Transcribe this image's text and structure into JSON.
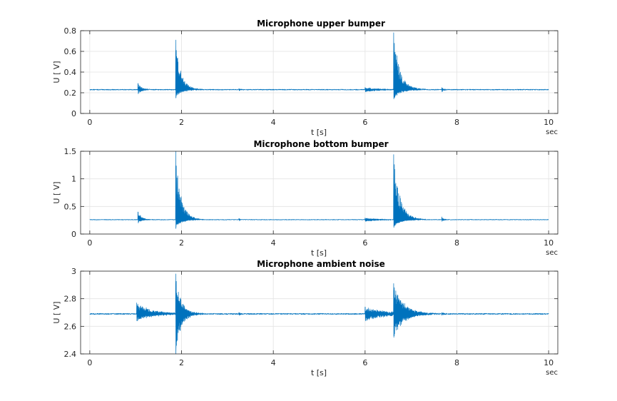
{
  "figure": {
    "background": "#ffffff"
  },
  "chart_data": [
    {
      "type": "line",
      "title": "Microphone upper bumper",
      "xlabel": "t [s]",
      "ylabel": "U [ V]",
      "x_unit_label": "sec",
      "xlim": [
        -0.2,
        10.2
      ],
      "ylim": [
        0,
        0.8
      ],
      "xticks": [
        0,
        2,
        4,
        6,
        8,
        10
      ],
      "yticks": [
        0,
        0.2,
        0.4,
        0.6,
        0.8
      ],
      "grid": true,
      "series_color": "#0072BD",
      "signal": {
        "baseline": 0.23,
        "noise": 0.004,
        "duration_s": 10,
        "events": [
          {
            "t": 1.05,
            "peak": 0.29,
            "trough": 0.19,
            "decay": 0.08
          },
          {
            "t": 1.87,
            "peak": 0.71,
            "trough": 0.15,
            "decay": 0.12
          },
          {
            "t": 3.25,
            "peak": 0.24,
            "trough": 0.22,
            "decay": 0.03
          },
          {
            "t": 6.0,
            "peak": 0.25,
            "trough": 0.21,
            "decay": 0.3
          },
          {
            "t": 6.62,
            "peak": 0.78,
            "trough": 0.14,
            "decay": 0.14
          },
          {
            "t": 7.67,
            "peak": 0.25,
            "trough": 0.21,
            "decay": 0.05
          }
        ]
      }
    },
    {
      "type": "line",
      "title": "Microphone bottom bumper",
      "xlabel": "t [s]",
      "ylabel": "U [ V]",
      "x_unit_label": "sec",
      "xlim": [
        -0.2,
        10.2
      ],
      "ylim": [
        0,
        1.5
      ],
      "xticks": [
        0,
        2,
        4,
        6,
        8,
        10
      ],
      "yticks": [
        0,
        0.5,
        1,
        1.5
      ],
      "grid": true,
      "series_color": "#0072BD",
      "signal": {
        "baseline": 0.26,
        "noise": 0.005,
        "duration_s": 10,
        "events": [
          {
            "t": 1.05,
            "peak": 0.4,
            "trough": 0.2,
            "decay": 0.08
          },
          {
            "t": 1.87,
            "peak": 1.5,
            "trough": 0.1,
            "decay": 0.12
          },
          {
            "t": 3.25,
            "peak": 0.28,
            "trough": 0.24,
            "decay": 0.03
          },
          {
            "t": 6.0,
            "peak": 0.29,
            "trough": 0.23,
            "decay": 0.3
          },
          {
            "t": 6.62,
            "peak": 1.44,
            "trough": 0.12,
            "decay": 0.14
          },
          {
            "t": 7.67,
            "peak": 0.31,
            "trough": 0.23,
            "decay": 0.05
          }
        ]
      }
    },
    {
      "type": "line",
      "title": "Microphone ambient noise",
      "xlabel": "t [s]",
      "ylabel": "U [ V]",
      "x_unit_label": "sec",
      "xlim": [
        -0.2,
        10.2
      ],
      "ylim": [
        2.4,
        3
      ],
      "xticks": [
        0,
        2,
        4,
        6,
        8,
        10
      ],
      "yticks": [
        2.4,
        2.6,
        2.8,
        3
      ],
      "grid": true,
      "series_color": "#0072BD",
      "signal": {
        "baseline": 2.69,
        "noise": 0.004,
        "duration_s": 10,
        "events": [
          {
            "t": 1.02,
            "peak": 2.77,
            "trough": 2.64,
            "decay": 0.35
          },
          {
            "t": 1.87,
            "peak": 2.98,
            "trough": 2.4,
            "decay": 0.12
          },
          {
            "t": 3.25,
            "peak": 2.7,
            "trough": 2.68,
            "decay": 0.03
          },
          {
            "t": 6.0,
            "peak": 2.74,
            "trough": 2.64,
            "decay": 0.45
          },
          {
            "t": 6.62,
            "peak": 2.91,
            "trough": 2.52,
            "decay": 0.2
          },
          {
            "t": 7.67,
            "peak": 2.7,
            "trough": 2.68,
            "decay": 0.05
          }
        ]
      }
    }
  ]
}
